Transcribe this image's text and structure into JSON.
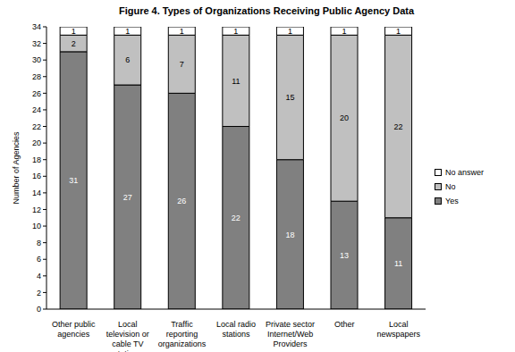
{
  "chart_data": {
    "type": "bar",
    "title": "Figure 4.  Types of Organizations Receiving Public Agency Data",
    "y_label": "Number of Agencies",
    "categories": [
      "Other public agencies",
      "Local television or cable TV stations",
      "Traffic reporting organizations",
      "Local radio stations",
      "Private sector Internet/Web Providers",
      "Other",
      "Local newspapers"
    ],
    "series": [
      {
        "name": "Yes",
        "color": "#808080",
        "values": [
          31,
          27,
          26,
          22,
          18,
          13,
          11
        ]
      },
      {
        "name": "No",
        "color": "#c0c0c0",
        "values": [
          2,
          6,
          7,
          11,
          15,
          20,
          22
        ]
      },
      {
        "name": "No answer",
        "color": "#ffffff",
        "values": [
          1,
          1,
          1,
          1,
          1,
          1,
          1
        ]
      }
    ],
    "ylim": [
      0,
      34
    ],
    "yticks": [
      0,
      2,
      4,
      6,
      8,
      10,
      12,
      14,
      16,
      18,
      20,
      22,
      24,
      26,
      28,
      30,
      32,
      34
    ],
    "stacked": true,
    "data_labels": true,
    "grid": false,
    "legend": "right"
  }
}
